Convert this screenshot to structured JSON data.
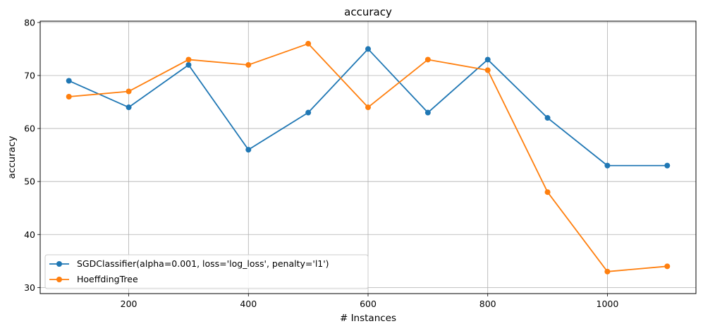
{
  "chart_data": {
    "type": "line",
    "title": "accuracy",
    "xlabel": "# Instances",
    "ylabel": "accuracy",
    "xlim": [
      52,
      1148
    ],
    "ylim": [
      28.85,
      80.25
    ],
    "xticks": [
      200,
      400,
      600,
      800,
      1000
    ],
    "yticks": [
      30,
      40,
      50,
      60,
      70,
      80
    ],
    "grid": true,
    "legend_position": "lower-left",
    "x": [
      100,
      200,
      300,
      400,
      500,
      600,
      700,
      800,
      900,
      1000,
      1100
    ],
    "series": [
      {
        "name": "SGDClassifier(alpha=0.001, loss='log_loss', penalty='l1')",
        "color": "#1f77b4",
        "values": [
          69,
          64,
          72,
          56,
          63,
          75,
          63,
          73,
          62,
          53,
          53
        ]
      },
      {
        "name": "HoeffdingTree",
        "color": "#ff7f0e",
        "values": [
          66,
          67,
          73,
          72,
          76,
          64,
          73,
          71,
          48,
          33,
          34
        ]
      }
    ]
  }
}
